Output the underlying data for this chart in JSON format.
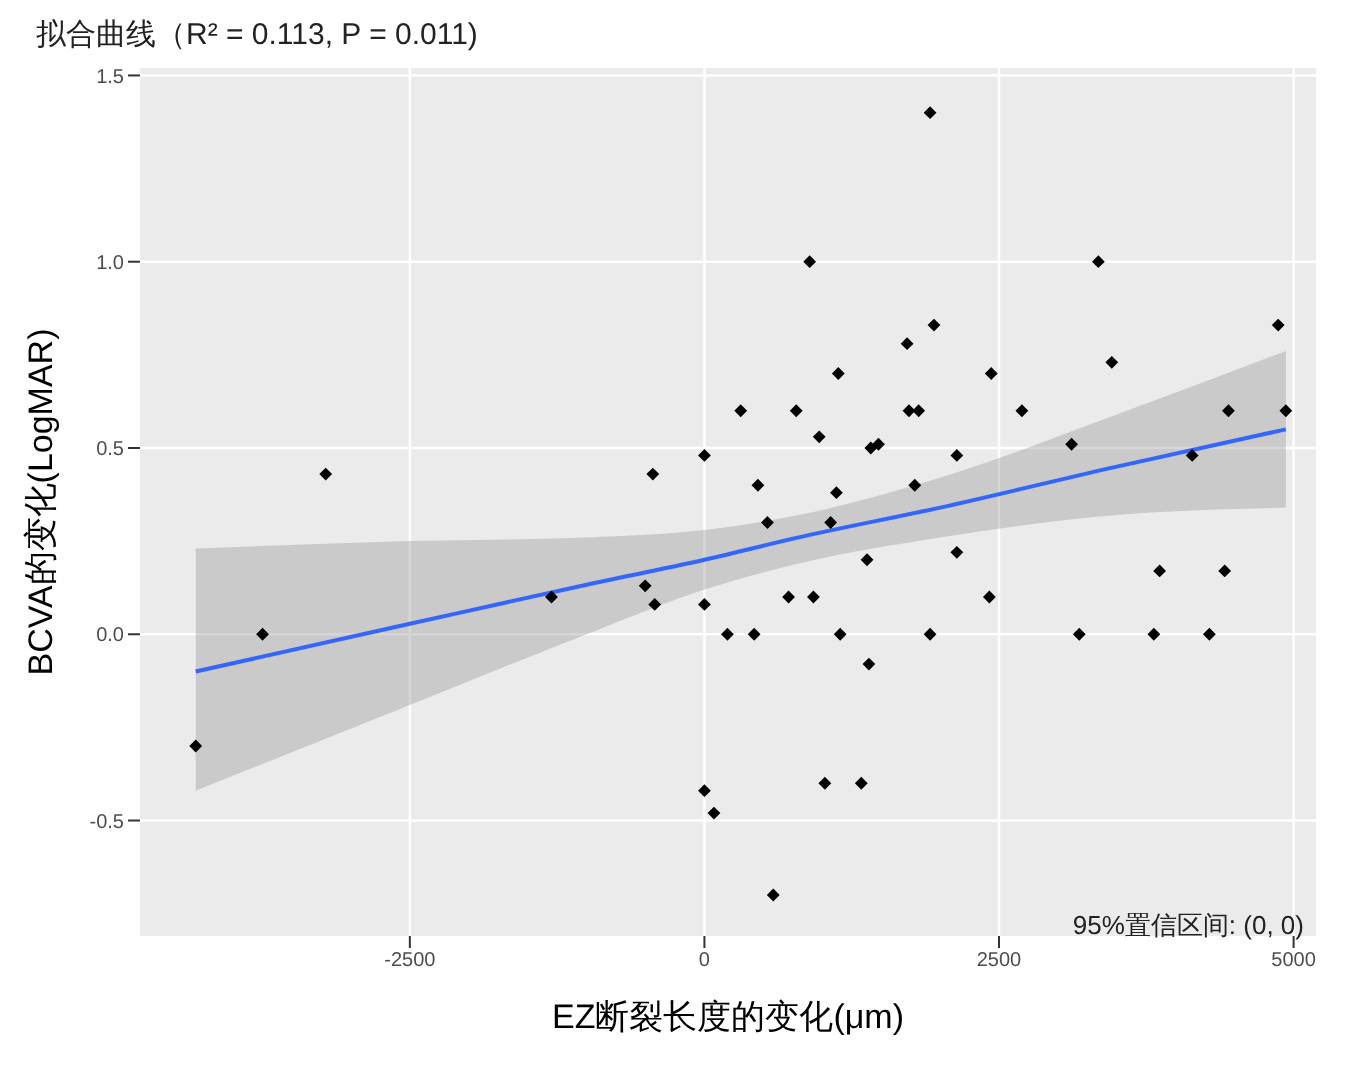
{
  "chart_data": {
    "type": "scatter",
    "title": "拟合曲线（R² = 0.113, P = 0.011)",
    "xlabel": "EZ断裂长度的变化(μm)",
    "ylabel": "BCVA的变化(LogMAR)",
    "annotations": [
      "95%置信区间: (0, 0)"
    ],
    "xlim": [
      -4790,
      5190
    ],
    "ylim": [
      -0.81,
      1.52
    ],
    "xticks": [
      -2500,
      0,
      2500,
      5000
    ],
    "yticks": [
      {
        "value": -0.5,
        "label": "-0.5"
      },
      {
        "value": 0,
        "label": "0.0"
      },
      {
        "value": 0.5,
        "label": "0.5"
      },
      {
        "value": 1,
        "label": "1.0"
      },
      {
        "value": 1.5,
        "label": "1.5"
      }
    ],
    "grid": true,
    "series": [
      {
        "marker": "diamond",
        "color": "#000000",
        "x": [
          -4317,
          -3750,
          -3214,
          -1298,
          -503,
          -422,
          -438,
          0,
          0,
          0,
          81,
          195,
          308,
          422,
          454,
          535,
          584,
          714,
          779,
          893,
          925,
          974,
          1022,
          1071,
          1120,
          1136,
          1152,
          1331,
          1380,
          1396,
          1412,
          1477,
          1720,
          1736,
          1785,
          1818,
          1915,
          1915,
          1948,
          2142,
          2142,
          2434,
          2418,
          2694,
          3116,
          3343,
          3181,
          3457,
          3814,
          3863,
          4139,
          4285,
          4415,
          4447,
          4869,
          4934
        ],
        "values": [
          -0.3,
          0,
          0.43,
          0.1,
          0.13,
          0.08,
          0.43,
          0.48,
          0.08,
          -0.42,
          -0.48,
          0,
          0.6,
          0,
          0.4,
          0.3,
          -0.7,
          0.1,
          0.6,
          1,
          0.1,
          0.53,
          -0.4,
          0.3,
          0.38,
          0.7,
          0,
          -0.4,
          0.2,
          -0.08,
          0.5,
          0.51,
          0.78,
          0.6,
          0.4,
          0.6,
          1.4,
          0,
          0.83,
          0.48,
          0.22,
          0.7,
          0.1,
          0.6,
          0.51,
          1,
          0,
          0.73,
          0,
          0.17,
          0.48,
          0,
          0.17,
          0.6,
          0.83,
          0.6
        ]
      },
      {
        "type": "line",
        "color": "#3366ff",
        "x": [
          -4317,
          -2500,
          -1000,
          0,
          800,
          2000,
          3500,
          4934
        ],
        "values": [
          -0.1,
          0.028,
          0.133,
          0.2,
          0.26,
          0.34,
          0.45,
          0.55
        ],
        "lower": [
          -0.42,
          -0.19,
          0,
          0.12,
          0.19,
          0.26,
          0.32,
          0.34
        ],
        "upper": [
          0.23,
          0.25,
          0.26,
          0.28,
          0.32,
          0.42,
          0.59,
          0.76
        ]
      }
    ]
  }
}
